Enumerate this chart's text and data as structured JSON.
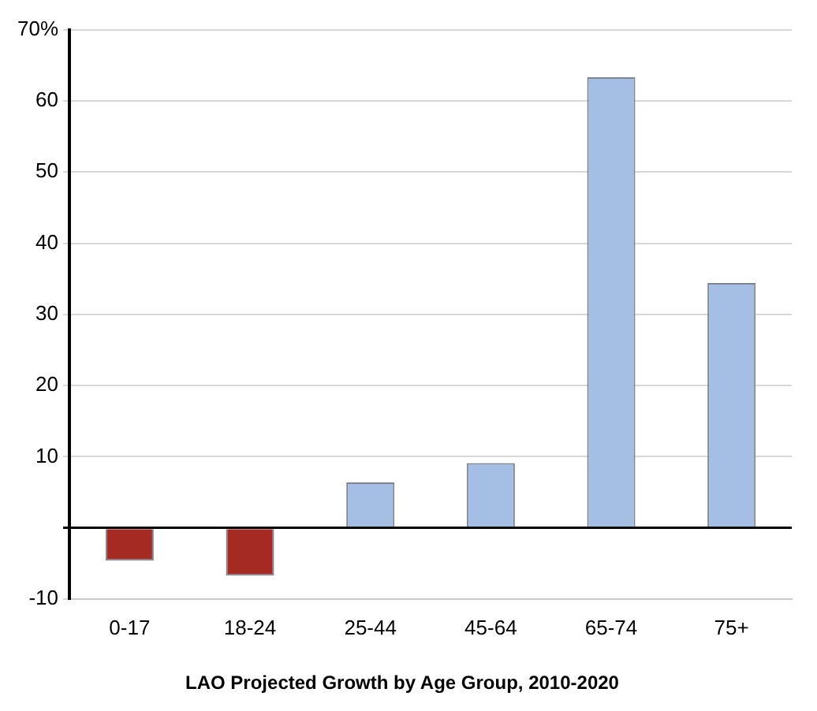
{
  "chart_data": {
    "type": "bar",
    "title": "LAO Projected Growth by Age Group, 2010-2020",
    "categories": [
      "0-17",
      "18-24",
      "25-44",
      "45-64",
      "65-74",
      "75+"
    ],
    "values": [
      -4.6,
      -6.7,
      6.4,
      9.1,
      63.3,
      34.4
    ],
    "colors": [
      "#a52a24",
      "#a52a24",
      "#a4bfe3",
      "#a4bfe3",
      "#a4bfe3",
      "#a4bfe3"
    ],
    "ylim": [
      -10,
      70
    ],
    "yticks": [
      -10,
      {
        "value": 0,
        "label": null
      },
      10,
      20,
      30,
      40,
      50,
      60,
      {
        "value": 70,
        "label": "70%"
      }
    ],
    "grid": "y",
    "legend": false
  }
}
